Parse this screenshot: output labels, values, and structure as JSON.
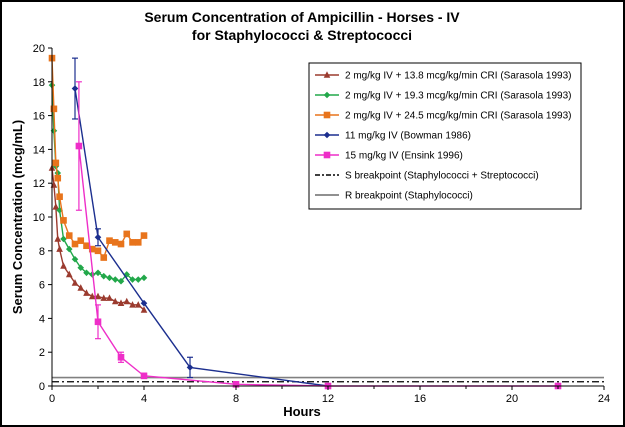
{
  "chart_data": {
    "type": "line",
    "title_line1": "Serum Concentration of Ampicillin  - Horses - IV",
    "title_line2": "for Staphylococci & Streptococci",
    "xlabel": "Hours",
    "ylabel": "Serum Concentration (mcg/mL)",
    "xlim": [
      0,
      24
    ],
    "ylim": [
      0,
      20
    ],
    "x_ticks": [
      "0",
      "4",
      "8",
      "12",
      "16",
      "20",
      "24"
    ],
    "y_ticks": [
      "0",
      "2",
      "4",
      "6",
      "8",
      "10",
      "12",
      "14",
      "16",
      "18",
      "20"
    ],
    "legend_position": "top-right",
    "series": [
      {
        "name": "2 mg/kg IV + 13.8 mcg/kg/min CRI (Sarasola 1993)",
        "color": "#9B3B2F",
        "marker": "triangle",
        "x": [
          0,
          0.083,
          0.167,
          0.25,
          0.33,
          0.5,
          0.75,
          1,
          1.25,
          1.5,
          1.75,
          2,
          2.25,
          2.5,
          2.75,
          3,
          3.25,
          3.5,
          3.75,
          4
        ],
        "y": [
          12.9,
          11.9,
          10.6,
          8.7,
          8.1,
          7.1,
          6.6,
          6.1,
          5.8,
          5.5,
          5.3,
          5.3,
          5.2,
          5.2,
          5.0,
          4.9,
          5.0,
          4.8,
          4.8,
          4.5
        ]
      },
      {
        "name": "2 mg/kg IV + 19.3 mcg/kg/min CRI (Sarasola 1993)",
        "color": "#22A84A",
        "marker": "diamond",
        "x": [
          0,
          0.083,
          0.167,
          0.25,
          0.33,
          0.5,
          0.75,
          1,
          1.25,
          1.5,
          1.75,
          2,
          2.25,
          2.5,
          2.75,
          3,
          3.25,
          3.5,
          3.75,
          4
        ],
        "y": [
          17.8,
          15.1,
          13.0,
          12.6,
          10.4,
          8.7,
          8.1,
          7.5,
          7.0,
          6.7,
          6.6,
          6.7,
          6.5,
          6.4,
          6.3,
          6.2,
          6.6,
          6.3,
          6.3,
          6.4
        ]
      },
      {
        "name": "2 mg/kg IV + 24.5 mcg/kg/min CRI (Sarasola 1993)",
        "color": "#E8741C",
        "marker": "square",
        "x": [
          0,
          0.083,
          0.167,
          0.25,
          0.33,
          0.5,
          0.75,
          1,
          1.25,
          1.5,
          1.75,
          2,
          2.25,
          2.5,
          2.75,
          3,
          3.25,
          3.5,
          3.75,
          4
        ],
        "y": [
          19.4,
          16.4,
          13.2,
          12.3,
          11.2,
          9.8,
          8.9,
          8.4,
          8.6,
          8.3,
          8.1,
          8.0,
          7.6,
          8.6,
          8.5,
          8.4,
          9.0,
          8.5,
          8.5,
          8.9
        ]
      },
      {
        "name": "11 mg/kg IV (Bowman 1986)",
        "color": "#1C2F8F",
        "marker": "diamond",
        "x": [
          1,
          2,
          4,
          6,
          12
        ],
        "y": [
          17.6,
          8.8,
          4.9,
          1.1,
          0
        ],
        "errors": [
          1.8,
          0.5,
          0,
          0.6,
          0
        ]
      },
      {
        "name": "15 mg/kg IV (Ensink 1996)",
        "color": "#EE2EC8",
        "marker": "square",
        "x": [
          1.17,
          2,
          3,
          4,
          8,
          12,
          22
        ],
        "y": [
          14.2,
          3.8,
          1.7,
          0.6,
          0.1,
          0,
          0
        ],
        "errors": [
          3.8,
          1.0,
          0.3,
          0.15,
          0,
          0,
          0
        ]
      },
      {
        "name": "S breakpoint (Staphylococci + Streptococci)",
        "color": "#000000",
        "style": "dash-dot",
        "value": 0.25
      },
      {
        "name": "R breakpoint (Staphylococci)",
        "color": "#808080",
        "style": "solid",
        "value": 0.5
      }
    ]
  }
}
